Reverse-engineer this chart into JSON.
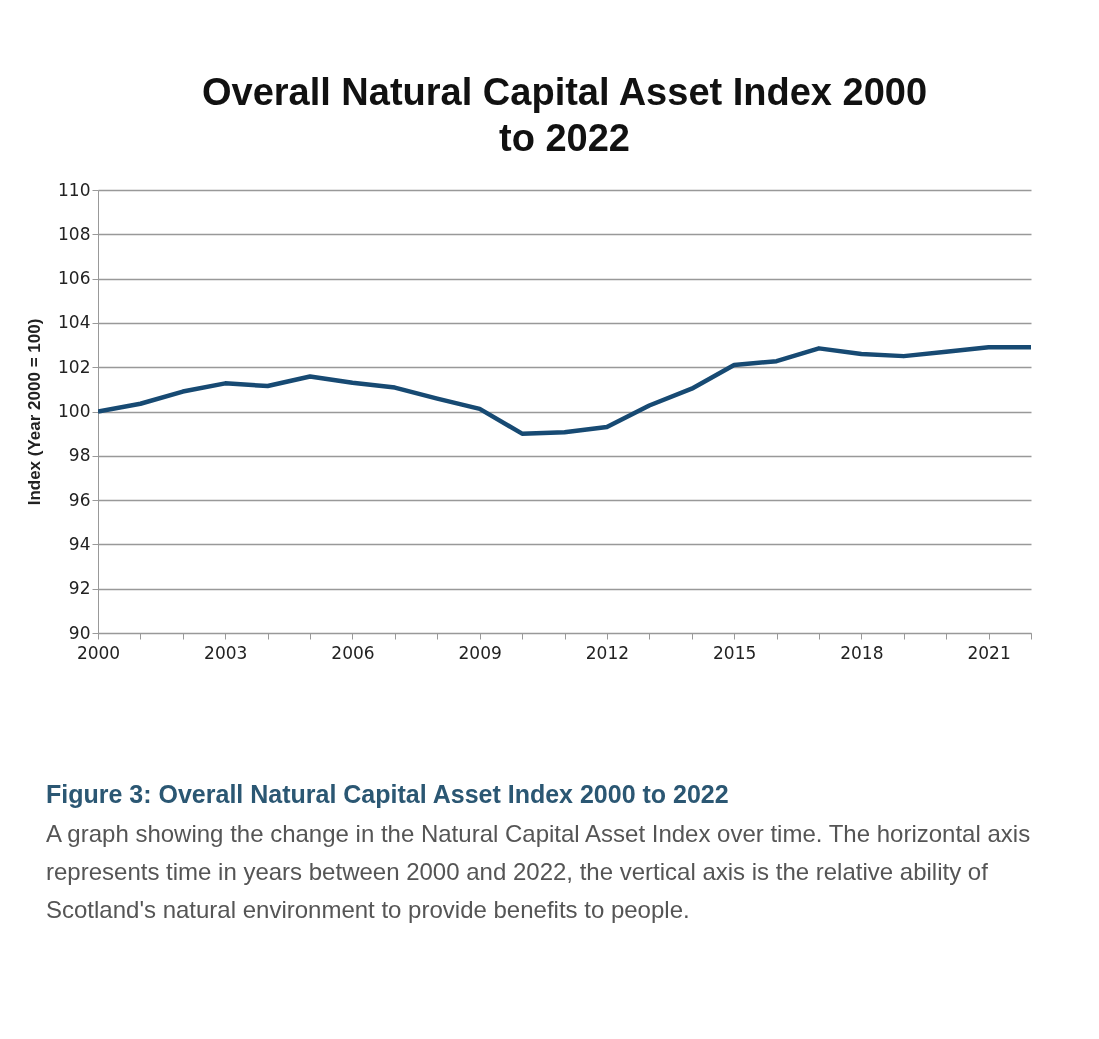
{
  "chart_data": {
    "type": "line",
    "title": "Overall Natural Capital Asset Index 2000 to 2022",
    "ylabel": "Index (Year 2000 = 100)",
    "x": [
      2000,
      2001,
      2002,
      2003,
      2004,
      2005,
      2006,
      2007,
      2008,
      2009,
      2010,
      2011,
      2012,
      2013,
      2014,
      2015,
      2016,
      2017,
      2018,
      2019,
      2020,
      2021,
      2022
    ],
    "series": [
      {
        "color": "#174a73",
        "values": [
          100.0,
          100.35,
          100.9,
          101.27,
          101.15,
          101.58,
          101.3,
          101.08,
          100.58,
          100.12,
          99.0,
          99.06,
          99.3,
          100.27,
          101.03,
          102.1,
          102.27,
          102.85,
          102.6,
          102.5,
          102.7,
          102.9,
          102.9
        ]
      }
    ],
    "xlim": [
      2000,
      2022
    ],
    "xticks": [
      2000,
      {
        "value": 2001,
        "label": null
      },
      {
        "value": 2002,
        "label": null
      },
      2003,
      {
        "value": 2004,
        "label": null
      },
      {
        "value": 2005,
        "label": null
      },
      2006,
      {
        "value": 2007,
        "label": null
      },
      {
        "value": 2008,
        "label": null
      },
      2009,
      {
        "value": 2010,
        "label": null
      },
      {
        "value": 2011,
        "label": null
      },
      2012,
      {
        "value": 2013,
        "label": null
      },
      {
        "value": 2014,
        "label": null
      },
      2015,
      {
        "value": 2016,
        "label": null
      },
      {
        "value": 2017,
        "label": null
      },
      2018,
      {
        "value": 2019,
        "label": null
      },
      {
        "value": 2020,
        "label": null
      },
      2021,
      {
        "value": 2022,
        "label": null
      }
    ],
    "ylim": [
      90,
      110
    ],
    "yticks": [
      90,
      92,
      94,
      96,
      98,
      100,
      102,
      104,
      106,
      108,
      110
    ],
    "grid": "y",
    "marker": "none",
    "line_style": "solid",
    "annotations": [
      "Figure 3: Overall Natural Capital Asset Index 2000 to 2022",
      "A graph showing the change in the Natural Capital Asset Index over time. The horizontal axis represents time in years between 2000 and 2022, the vertical axis is the relative ability of Scotland's natural environment to provide benefits to people."
    ]
  }
}
